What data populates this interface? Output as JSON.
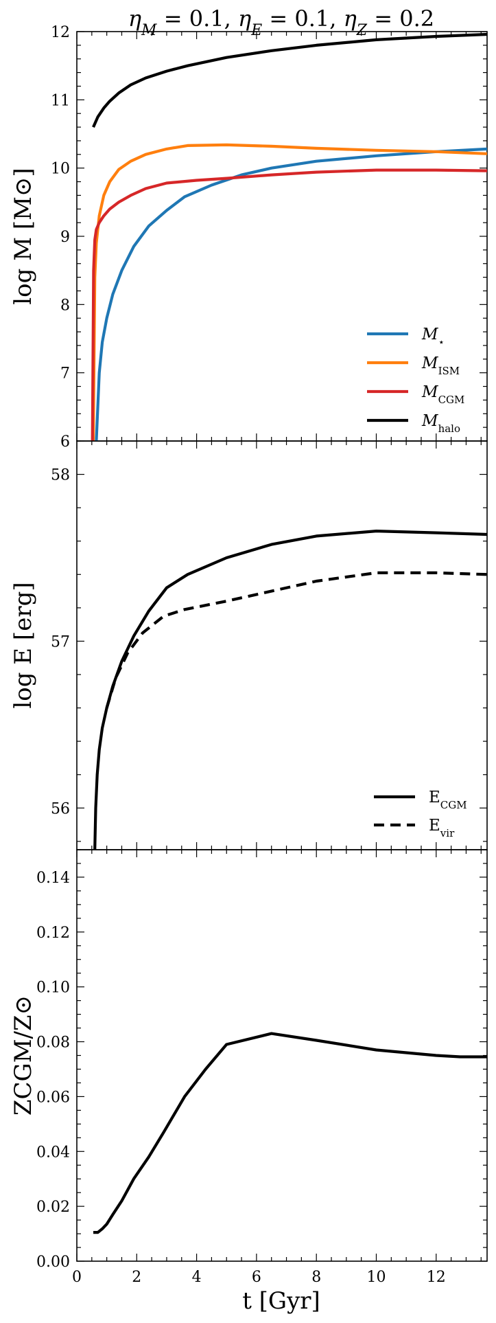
{
  "figure": {
    "title": "ηM = 0.1, ηE = 0.1, ηZ = 0.2",
    "xlabel": "t [Gyr]"
  },
  "colors": {
    "M_star": "#1f77b4",
    "M_ISM": "#ff7f0e",
    "M_CGM": "#d62728",
    "M_halo": "#000000",
    "E": "#000000",
    "Z": "#000000"
  },
  "chart_data": [
    {
      "type": "line",
      "ylabel": "log M [M⊙]",
      "xlim": [
        0,
        13.7
      ],
      "ylim": [
        6,
        12
      ],
      "xticks": [
        0,
        2,
        4,
        6,
        8,
        10,
        12
      ],
      "yticks": [
        6,
        7,
        8,
        9,
        10,
        11,
        12
      ],
      "legend_position": "lower-right",
      "series": [
        {
          "name": "M⋆",
          "color_key": "M_star",
          "dash": "solid",
          "x": [
            0.65,
            0.75,
            0.85,
            1.0,
            1.2,
            1.5,
            1.9,
            2.4,
            3.0,
            3.6,
            4.5,
            5.5,
            6.5,
            8.0,
            10.0,
            12.0,
            13.7
          ],
          "y": [
            6.0,
            7.0,
            7.45,
            7.8,
            8.15,
            8.5,
            8.85,
            9.15,
            9.38,
            9.58,
            9.75,
            9.9,
            10.0,
            10.1,
            10.18,
            10.24,
            10.28
          ]
        },
        {
          "name": "MISM",
          "color_key": "M_ISM",
          "dash": "solid",
          "x": [
            0.55,
            0.6,
            0.65,
            0.75,
            0.9,
            1.1,
            1.4,
            1.8,
            2.3,
            3.0,
            3.7,
            5.0,
            6.5,
            8.0,
            10.0,
            12.0,
            13.7
          ],
          "y": [
            6.0,
            8.4,
            8.9,
            9.3,
            9.6,
            9.8,
            9.98,
            10.1,
            10.2,
            10.28,
            10.33,
            10.34,
            10.32,
            10.29,
            10.26,
            10.24,
            10.21
          ]
        },
        {
          "name": "MCGM",
          "color_key": "M_CGM",
          "dash": "solid",
          "x": [
            0.52,
            0.56,
            0.6,
            0.65,
            0.75,
            0.9,
            1.1,
            1.4,
            1.8,
            2.3,
            3.0,
            4.0,
            5.0,
            6.5,
            8.0,
            10.0,
            12.0,
            13.7
          ],
          "y": [
            6.0,
            8.5,
            8.95,
            9.1,
            9.2,
            9.3,
            9.4,
            9.5,
            9.6,
            9.7,
            9.78,
            9.82,
            9.85,
            9.9,
            9.94,
            9.97,
            9.97,
            9.96
          ]
        },
        {
          "name": "Mhalo",
          "color_key": "M_halo",
          "dash": "solid",
          "x": [
            0.55,
            0.7,
            0.9,
            1.1,
            1.4,
            1.8,
            2.3,
            3.0,
            3.7,
            5.0,
            6.5,
            8.0,
            10.0,
            12.0,
            13.7
          ],
          "y": [
            10.6,
            10.75,
            10.88,
            10.98,
            11.1,
            11.22,
            11.32,
            11.42,
            11.5,
            11.62,
            11.72,
            11.8,
            11.88,
            11.93,
            11.96
          ]
        }
      ]
    },
    {
      "type": "line",
      "ylabel": "log E [erg]",
      "xlim": [
        0,
        13.7
      ],
      "ylim": [
        55.75,
        58.2
      ],
      "xticks": [
        0,
        2,
        4,
        6,
        8,
        10,
        12
      ],
      "yticks": [
        56,
        57,
        58
      ],
      "legend_position": "lower-right",
      "series": [
        {
          "name": "ECGM",
          "color_key": "E",
          "dash": "solid",
          "x": [
            0.6,
            0.63,
            0.68,
            0.75,
            0.85,
            1.0,
            1.2,
            1.5,
            1.9,
            2.4,
            3.0,
            3.7,
            5.0,
            6.5,
            8.0,
            10.0,
            12.0,
            13.7
          ],
          "y": [
            55.75,
            56.0,
            56.2,
            56.35,
            56.48,
            56.6,
            56.73,
            56.88,
            57.03,
            57.18,
            57.32,
            57.4,
            57.5,
            57.58,
            57.63,
            57.66,
            57.65,
            57.64
          ]
        },
        {
          "name": "Evir",
          "color_key": "E",
          "dash": "dashed",
          "x": [
            1.0,
            1.3,
            1.7,
            2.2,
            2.9,
            3.6,
            5.0,
            6.5,
            8.0,
            10.0,
            12.0,
            13.7
          ],
          "y": [
            56.6,
            56.78,
            56.93,
            57.05,
            57.15,
            57.19,
            57.24,
            57.3,
            57.36,
            57.41,
            57.41,
            57.4
          ]
        }
      ]
    },
    {
      "type": "line",
      "ylabel": "ZCGM/Z⊙",
      "xlim": [
        0,
        13.7
      ],
      "ylim": [
        0,
        0.15
      ],
      "xticks": [
        0,
        2,
        4,
        6,
        8,
        10,
        12
      ],
      "xticklabels": [
        "0",
        "2",
        "4",
        "6",
        "8",
        "10",
        "12"
      ],
      "yticks": [
        0.0,
        0.02,
        0.04,
        0.06,
        0.08,
        0.1,
        0.12,
        0.14
      ],
      "yticklabels": [
        "0.00",
        "0.02",
        "0.04",
        "0.06",
        "0.08",
        "0.10",
        "0.12",
        "0.14"
      ],
      "series": [
        {
          "name": "",
          "color_key": "Z",
          "dash": "solid",
          "x": [
            0.55,
            0.7,
            0.85,
            1.0,
            1.2,
            1.5,
            1.9,
            2.4,
            2.9,
            3.6,
            4.3,
            5.0,
            6.5,
            8.0,
            10.0,
            12.0,
            12.8,
            13.7
          ],
          "y": [
            0.0105,
            0.0105,
            0.0118,
            0.0135,
            0.017,
            0.022,
            0.03,
            0.038,
            0.047,
            0.06,
            0.07,
            0.079,
            0.083,
            0.0805,
            0.077,
            0.075,
            0.0745,
            0.0745
          ]
        }
      ]
    }
  ]
}
